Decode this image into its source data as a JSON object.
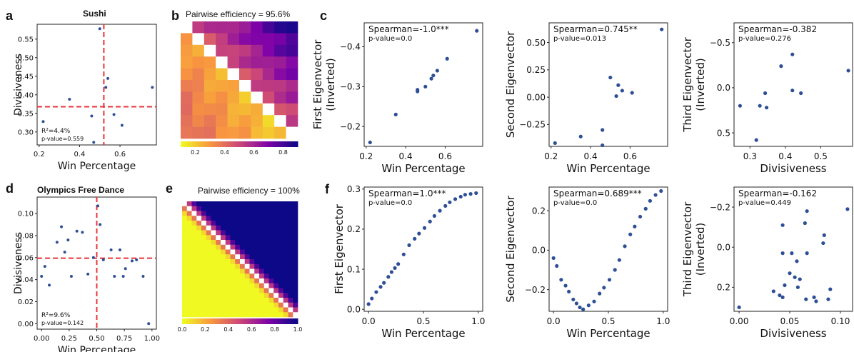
{
  "figure": {
    "panel_labels": {
      "a": "a",
      "b": "b",
      "c": "c",
      "d": "d",
      "e": "e",
      "f": "f"
    },
    "sushi_title": "Sushi",
    "olympics_title": "Olympics Free Dance",
    "sushi_heatmap_title": "Pairwise efficiency = 95.6%",
    "olympics_heatmap_title": "Pairwise efficiency = 100%"
  },
  "colors": {
    "points": "#2e4f96",
    "crosshair": "#e8343a"
  },
  "chart_data": [
    {
      "id": "a",
      "type": "scatter",
      "xlabel": "Win Percentage",
      "ylabel": "Divisiveness",
      "xlim": [
        0.19,
        0.78
      ],
      "ylim": [
        0.265,
        0.59
      ],
      "xticks": [
        0.2,
        0.4,
        0.6
      ],
      "xtick_labels": [
        "0.2",
        "0.4",
        "0.6"
      ],
      "yticks": [
        0.3,
        0.35,
        0.4,
        0.45,
        0.5,
        0.55
      ],
      "ytick_labels": [
        "0.30",
        "0.35",
        "0.40",
        "0.45",
        "0.50",
        "0.55"
      ],
      "x": [
        0.22,
        0.35,
        0.46,
        0.47,
        0.5,
        0.53,
        0.54,
        0.57,
        0.61,
        0.76
      ],
      "y": [
        0.328,
        0.388,
        0.343,
        0.272,
        0.578,
        0.42,
        0.444,
        0.347,
        0.318,
        0.42
      ],
      "crosshair": {
        "x": 0.52,
        "y": 0.368
      },
      "annotations": [
        "R²=4.4%",
        "p-value=0.559"
      ]
    },
    {
      "id": "b",
      "type": "heatmap",
      "colorbar_ticks": [
        "0.2",
        "0.4",
        "0.6",
        "0.8"
      ],
      "vmin": 0.1,
      "vmax": 0.9,
      "n": 10
    },
    {
      "id": "c1",
      "type": "scatter",
      "xlabel": "Win Percentage",
      "ylabel": "First Eigenvector\n(Inverted)",
      "xlim": [
        0.19,
        0.79
      ],
      "ylim": [
        -0.15,
        -0.46
      ],
      "xticks": [
        0.2,
        0.4,
        0.6
      ],
      "xtick_labels": [
        "0.2",
        "0.4",
        "0.6"
      ],
      "yticks": [
        -0.2,
        -0.3,
        -0.4
      ],
      "ytick_labels": [
        "−0.2",
        "−0.3",
        "−0.4"
      ],
      "x": [
        0.22,
        0.35,
        0.46,
        0.46,
        0.5,
        0.53,
        0.54,
        0.56,
        0.61,
        0.76
      ],
      "y": [
        -0.16,
        -0.23,
        -0.288,
        -0.292,
        -0.3,
        -0.32,
        -0.328,
        -0.34,
        -0.37,
        -0.44
      ],
      "annotations": [
        "Spearman=-1.0***",
        "p-value=0.0"
      ]
    },
    {
      "id": "c2",
      "type": "scatter",
      "xlabel": "Win Percentage",
      "ylabel": "Second Eigenvector",
      "xlim": [
        0.19,
        0.79
      ],
      "ylim": [
        -0.45,
        0.68
      ],
      "xticks": [
        0.2,
        0.4,
        0.6
      ],
      "xtick_labels": [
        "0.2",
        "0.4",
        "0.6"
      ],
      "yticks": [
        -0.25,
        0,
        0.25,
        0.5
      ],
      "ytick_labels": [
        "−0.25",
        "0.00",
        "0.25",
        "0.50"
      ],
      "x": [
        0.22,
        0.35,
        0.46,
        0.46,
        0.5,
        0.53,
        0.54,
        0.56,
        0.61,
        0.76
      ],
      "y": [
        -0.42,
        -0.36,
        -0.44,
        -0.3,
        0.18,
        0.01,
        0.11,
        0.06,
        0.04,
        0.62
      ],
      "annotations": [
        "Spearman=0.745**",
        "p-value=0.013"
      ]
    },
    {
      "id": "c3",
      "type": "scatter",
      "xlabel": "Divisiveness",
      "ylabel": "Third Eigenvector\n(Inverted)",
      "xlim": [
        0.255,
        0.59
      ],
      "ylim": [
        0.65,
        -0.72
      ],
      "xticks": [
        0.3,
        0.4,
        0.5
      ],
      "xtick_labels": [
        "0.3",
        "0.4",
        "0.5"
      ],
      "yticks": [
        0.5,
        0.0,
        -0.5
      ],
      "ytick_labels": [
        "0.5",
        "0.0",
        "−0.5"
      ],
      "x": [
        0.272,
        0.318,
        0.328,
        0.343,
        0.347,
        0.388,
        0.42,
        0.42,
        0.444,
        0.578
      ],
      "y": [
        0.2,
        0.58,
        0.2,
        0.06,
        0.22,
        -0.24,
        -0.37,
        0.03,
        0.06,
        -0.19
      ],
      "annotations": [
        "Spearman=-0.382",
        "p-value=0.276"
      ]
    },
    {
      "id": "d",
      "type": "scatter",
      "xlabel": "Win Percentage",
      "ylabel": "Divisiveness",
      "xlim": [
        -0.04,
        1.04
      ],
      "ylim": [
        -0.005,
        0.115
      ],
      "xticks": [
        0,
        0.25,
        0.5,
        0.75,
        1.0
      ],
      "xtick_labels": [
        "0.00",
        "0.25",
        "0.50",
        "0.75",
        "1.00"
      ],
      "yticks": [
        0,
        0.02,
        0.04,
        0.06,
        0.08,
        0.1
      ],
      "ytick_labels": [
        "0.00",
        "0.02",
        "0.04",
        "0.06",
        "0.08",
        "0.10"
      ],
      "x": [
        0.0,
        0.03,
        0.07,
        0.14,
        0.18,
        0.21,
        0.24,
        0.27,
        0.32,
        0.37,
        0.42,
        0.47,
        0.51,
        0.53,
        0.56,
        0.63,
        0.66,
        0.71,
        0.74,
        0.76,
        0.82,
        0.86,
        0.92,
        0.97
      ],
      "y": [
        0.043,
        0.052,
        0.035,
        0.074,
        0.088,
        0.065,
        0.076,
        0.043,
        0.084,
        0.083,
        0.045,
        0.06,
        0.107,
        0.09,
        0.058,
        0.067,
        0.043,
        0.067,
        0.043,
        0.05,
        0.057,
        0.058,
        0.043,
        0.0
      ],
      "crosshair": {
        "x": 0.5,
        "y": 0.0595
      },
      "annotations": [
        "R²=9.6%",
        "p-value=0.142"
      ]
    },
    {
      "id": "e",
      "type": "heatmap",
      "colorbar_ticks": [
        "0.0",
        "0.2",
        "0.4",
        "0.6",
        "0.8",
        "1.0"
      ],
      "vmin": 0,
      "vmax": 1,
      "n": 24
    },
    {
      "id": "f1",
      "type": "scatter",
      "xlabel": "Win Percentage",
      "ylabel": "First Eigenvector",
      "xlim": [
        -0.04,
        1.04
      ],
      "ylim": [
        -0.005,
        0.305
      ],
      "xticks": [
        0,
        0.5,
        1.0
      ],
      "xtick_labels": [
        "0.0",
        "0.5",
        "1.0"
      ],
      "yticks": [
        0,
        0.1,
        0.2,
        0.3
      ],
      "ytick_labels": [
        "0.0",
        "0.1",
        "0.2",
        "0.3"
      ],
      "x": [
        0.0,
        0.03,
        0.07,
        0.11,
        0.14,
        0.18,
        0.21,
        0.24,
        0.27,
        0.32,
        0.37,
        0.42,
        0.46,
        0.51,
        0.56,
        0.6,
        0.65,
        0.7,
        0.74,
        0.79,
        0.84,
        0.88,
        0.93,
        0.98
      ],
      "y": [
        0.013,
        0.027,
        0.043,
        0.056,
        0.066,
        0.081,
        0.093,
        0.103,
        0.113,
        0.137,
        0.16,
        0.176,
        0.189,
        0.203,
        0.219,
        0.233,
        0.246,
        0.258,
        0.267,
        0.275,
        0.281,
        0.286,
        0.288,
        0.29
      ],
      "annotations": [
        "Spearman=1.0***",
        "p-value=0.0"
      ]
    },
    {
      "id": "f2",
      "type": "scatter",
      "xlabel": "Win Percentage",
      "ylabel": "Second Eigenvector",
      "xlim": [
        -0.04,
        1.04
      ],
      "ylim": [
        -0.31,
        0.32
      ],
      "xticks": [
        0,
        0.5,
        1.0
      ],
      "xtick_labels": [
        "0.0",
        "0.5",
        "1.0"
      ],
      "yticks": [
        -0.2,
        0,
        0.2
      ],
      "ytick_labels": [
        "−0.2",
        "0.0",
        "0.2"
      ],
      "x": [
        0.0,
        0.03,
        0.07,
        0.11,
        0.14,
        0.18,
        0.21,
        0.24,
        0.27,
        0.32,
        0.37,
        0.42,
        0.46,
        0.51,
        0.56,
        0.6,
        0.65,
        0.7,
        0.74,
        0.79,
        0.84,
        0.88,
        0.93,
        0.98
      ],
      "y": [
        -0.04,
        -0.08,
        -0.15,
        -0.18,
        -0.21,
        -0.25,
        -0.27,
        -0.29,
        -0.3,
        -0.28,
        -0.26,
        -0.22,
        -0.19,
        -0.15,
        -0.1,
        -0.05,
        0.02,
        0.08,
        0.12,
        0.17,
        0.21,
        0.25,
        0.28,
        0.3
      ],
      "annotations": [
        "Spearman=0.689***",
        "p-value=0.0"
      ]
    },
    {
      "id": "f3",
      "type": "scatter",
      "xlabel": "Divisiveness",
      "ylabel": "Third Eigenvector\n(Inverted)",
      "xlim": [
        -0.005,
        0.112
      ],
      "ylim": [
        0.32,
        -0.3
      ],
      "xticks": [
        0,
        0.05,
        0.1
      ],
      "xtick_labels": [
        "0.00",
        "0.05",
        "0.10"
      ],
      "yticks": [
        0.2,
        0.0,
        -0.2
      ],
      "ytick_labels": [
        "0.2",
        "0.0",
        "−0.2"
      ],
      "x": [
        0.0,
        0.034,
        0.04,
        0.043,
        0.043,
        0.043,
        0.045,
        0.05,
        0.052,
        0.055,
        0.057,
        0.058,
        0.06,
        0.065,
        0.066,
        0.067,
        0.067,
        0.074,
        0.076,
        0.083,
        0.084,
        0.088,
        0.09,
        0.107
      ],
      "y": [
        0.3,
        0.22,
        0.24,
        -0.11,
        0.03,
        0.25,
        0.19,
        0.13,
        0.03,
        0.15,
        0.07,
        0.2,
        0.16,
        -0.12,
        0.26,
        0.03,
        -0.18,
        0.25,
        0.27,
        -0.02,
        -0.06,
        0.26,
        0.21,
        -0.19
      ],
      "annotations": [
        "Spearman=-0.162",
        "p-value=0.449"
      ]
    }
  ]
}
